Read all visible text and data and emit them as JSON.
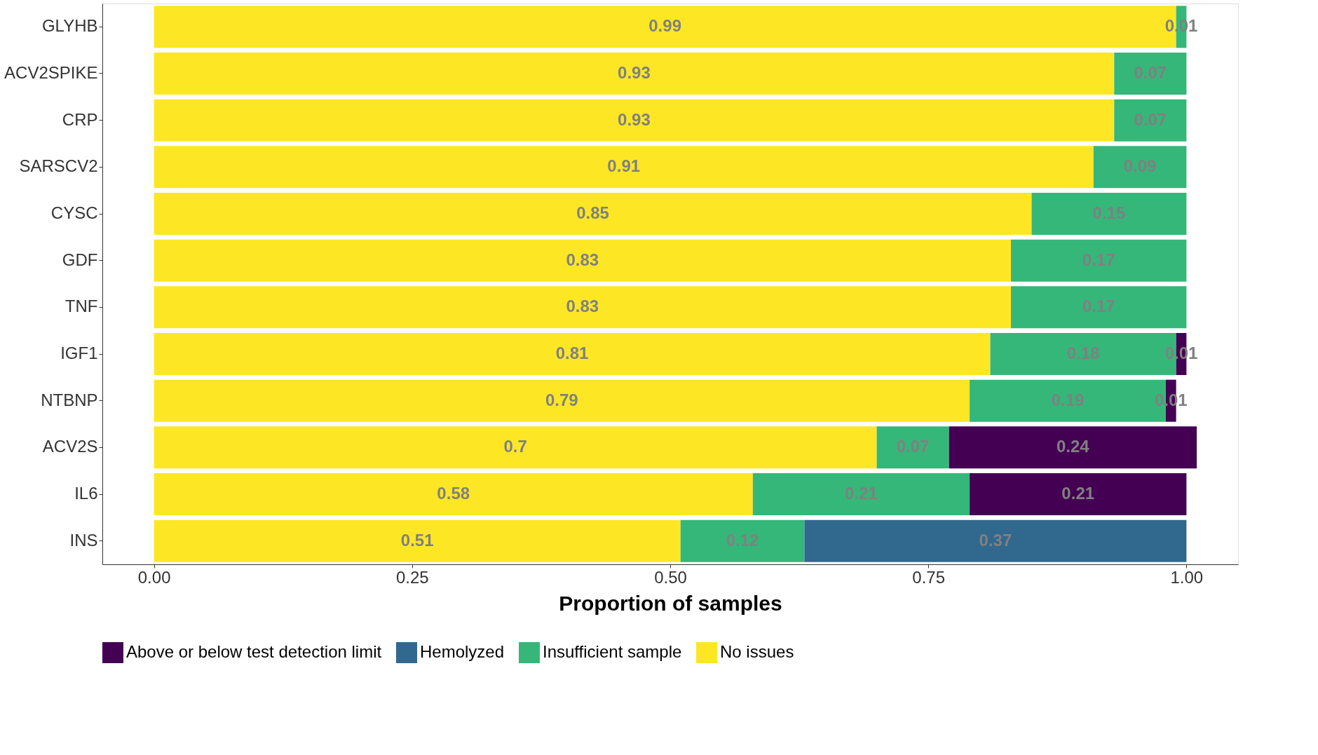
{
  "chart_data": {
    "type": "bar",
    "orientation": "horizontal",
    "stacked": true,
    "xlabel": "Proportion of samples",
    "categories": [
      "GLYHB",
      "ACV2SPIKE",
      "CRP",
      "SARSCV2",
      "CYSC",
      "GDF",
      "TNF",
      "IGF1",
      "NTBNP",
      "ACV2S",
      "IL6",
      "INS"
    ],
    "series": [
      {
        "name": "No issues",
        "color": "#fde725",
        "values": [
          0.99,
          0.93,
          0.93,
          0.91,
          0.85,
          0.83,
          0.83,
          0.81,
          0.79,
          0.7,
          0.58,
          0.51
        ]
      },
      {
        "name": "Insufficient sample",
        "color": "#35b779",
        "values": [
          0.01,
          0.07,
          0.07,
          0.09,
          0.15,
          0.17,
          0.17,
          0.18,
          0.19,
          0.07,
          0.21,
          0.12
        ]
      },
      {
        "name": "Hemolyzed",
        "color": "#31688e",
        "values": [
          null,
          null,
          null,
          null,
          null,
          null,
          null,
          null,
          null,
          null,
          null,
          0.37
        ]
      },
      {
        "name": "Above or below test detection limit",
        "color": "#440154",
        "values": [
          null,
          null,
          null,
          null,
          null,
          null,
          null,
          0.01,
          0.01,
          0.24,
          0.21,
          null
        ]
      }
    ],
    "xlim": [
      -0.05,
      1.05
    ],
    "xticks": [
      {
        "value": 0,
        "label": "0.00"
      },
      {
        "value": 0.25,
        "label": "0.25"
      },
      {
        "value": 0.5,
        "label": "0.50"
      },
      {
        "value": 0.75,
        "label": "0.75"
      },
      {
        "value": 1,
        "label": "1.00"
      }
    ],
    "data_labels": true,
    "grid": false,
    "legend": "bottom"
  }
}
